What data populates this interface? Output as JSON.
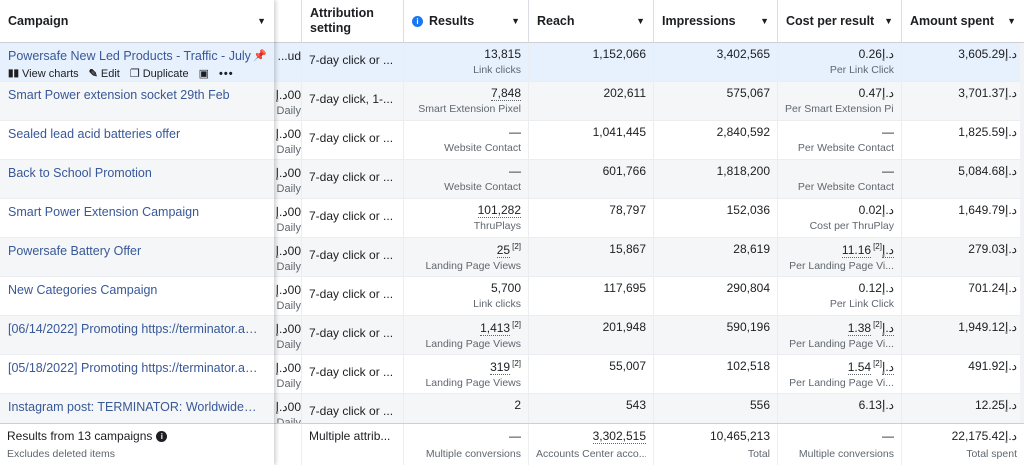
{
  "headers": {
    "campaign": "Campaign",
    "attribution_line1": "Attribution",
    "attribution_line2": "setting",
    "results": "Results",
    "reach": "Reach",
    "impressions": "Impressions",
    "cost_per_result": "Cost per result",
    "amount_spent": "Amount spent"
  },
  "row_actions": {
    "view_charts": "View charts",
    "edit": "Edit",
    "duplicate": "Duplicate",
    "more": "•••"
  },
  "rows": [
    {
      "campaign": "Powersafe New Led Products - Traffic - July",
      "partial_top": "ud...",
      "partial_bottom": "",
      "attribution": "7-day click or ...",
      "results": "13,815",
      "results_fn": "",
      "results_sub": "Link clicks",
      "reach": "1,152,066",
      "impressions": "3,402,565",
      "cpr": "0.26د.إ",
      "cpr_fn": "",
      "cpr_sub": "Per Link Click",
      "spent": "3,605.29د.إ"
    },
    {
      "campaign": "Smart Power extension socket 29th Feb",
      "partial_top": "00د.إ",
      "partial_bottom": "Daily",
      "attribution": "7-day click, 1-...",
      "results": "7,848",
      "results_fn": "",
      "results_sub": "Smart Extension Pixel",
      "reach": "202,611",
      "impressions": "575,067",
      "cpr": "0.47د.إ",
      "cpr_fn": "",
      "cpr_sub": "Per Smart Extension Pi...",
      "spent": "3,701.37د.إ"
    },
    {
      "campaign": "Sealed lead acid batteries offer",
      "partial_top": "00د.إ",
      "partial_bottom": "Daily",
      "attribution": "7-day click or ...",
      "results": "—",
      "results_fn": "",
      "results_sub": "Website Contact",
      "reach": "1,041,445",
      "impressions": "2,840,592",
      "cpr": "—",
      "cpr_fn": "",
      "cpr_sub": "Per Website Contact",
      "spent": "1,825.59د.إ"
    },
    {
      "campaign": "Back to School Promotion",
      "partial_top": "00د.إ",
      "partial_bottom": "Daily",
      "attribution": "7-day click or ...",
      "results": "—",
      "results_fn": "",
      "results_sub": "Website Contact",
      "reach": "601,766",
      "impressions": "1,818,200",
      "cpr": "—",
      "cpr_fn": "",
      "cpr_sub": "Per Website Contact",
      "spent": "5,084.68د.إ"
    },
    {
      "campaign": "Smart Power Extension Campaign",
      "partial_top": "00د.إ",
      "partial_bottom": "Daily",
      "attribution": "7-day click or ...",
      "results": "101,282",
      "results_fn": "",
      "results_sub": "ThruPlays",
      "reach": "78,797",
      "impressions": "152,036",
      "cpr": "0.02د.إ",
      "cpr_fn": "",
      "cpr_sub": "Cost per ThruPlay",
      "spent": "1,649.79د.إ"
    },
    {
      "campaign": "Powersafe Battery Offer",
      "partial_top": "00د.إ",
      "partial_bottom": "Daily",
      "attribution": "7-day click or ...",
      "results": "25",
      "results_fn": "[2]",
      "results_sub": "Landing Page Views",
      "reach": "15,867",
      "impressions": "28,619",
      "cpr": "11.16د.إ",
      "cpr_fn": "[2]",
      "cpr_sub": "Per Landing Page Vi...",
      "spent": "279.03د.إ"
    },
    {
      "campaign": "New Categories Campaign",
      "partial_top": "00د.إ",
      "partial_bottom": "Daily",
      "attribution": "7-day click or ...",
      "results": "5,700",
      "results_fn": "",
      "results_sub": "Link clicks",
      "reach": "117,695",
      "impressions": "290,804",
      "cpr": "0.12د.إ",
      "cpr_fn": "",
      "cpr_sub": "Per Link Click",
      "spent": "701.24د.إ"
    },
    {
      "campaign": "[06/14/2022] Promoting https://terminator.ae/...",
      "partial_top": "00د.إ",
      "partial_bottom": "Daily",
      "attribution": "7-day click or ...",
      "results": "1,413",
      "results_fn": "[2]",
      "results_sub": "Landing Page Views",
      "reach": "201,948",
      "impressions": "590,196",
      "cpr": "1.38د.إ",
      "cpr_fn": "[2]",
      "cpr_sub": "Per Landing Page Vi...",
      "spent": "1,949.12د.إ"
    },
    {
      "campaign": "[05/18/2022] Promoting https://terminator.ae/...",
      "partial_top": "00د.إ",
      "partial_bottom": "Daily",
      "attribution": "7-day click or ...",
      "results": "319",
      "results_fn": "[2]",
      "results_sub": "Landing Page Views",
      "reach": "55,007",
      "impressions": "102,518",
      "cpr": "1.54د.إ",
      "cpr_fn": "[2]",
      "cpr_sub": "Per Landing Page Vi...",
      "spent": "491.92د.إ"
    },
    {
      "campaign": "Instagram post: TERMINATOR: Worldwide Lead...",
      "partial_top": "00د.إ",
      "partial_bottom": "Daily",
      "attribution": "7-day click or ...",
      "results": "2",
      "results_fn": "",
      "results_sub": "",
      "reach": "543",
      "impressions": "556",
      "cpr": "6.13د.إ",
      "cpr_fn": "",
      "cpr_sub": "",
      "spent": "12.25د.إ"
    }
  ],
  "footer": {
    "campaign": "Results from 13 campaigns",
    "campaign_sub": "Excludes deleted items",
    "attribution": "Multiple attrib...",
    "results": "—",
    "results_sub": "Multiple conversions",
    "reach": "3,302,515",
    "reach_sub": "Accounts Center acco...",
    "impressions": "10,465,213",
    "impressions_sub": "Total",
    "cpr": "—",
    "cpr_sub": "Multiple conversions",
    "spent": "22,175.42د.إ",
    "spent_sub": "Total spent"
  },
  "colors": {
    "link": "#385898",
    "accent": "#1877f2",
    "selected_row": "#e7f0fd"
  }
}
